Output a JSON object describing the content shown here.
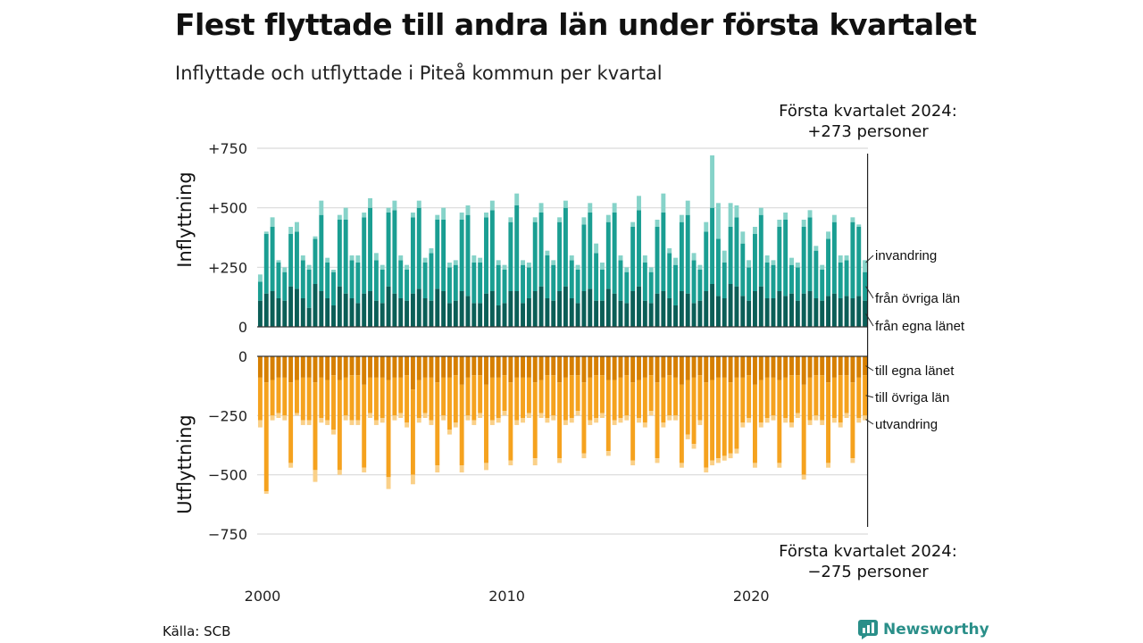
{
  "title": "Flest flyttade till andra län under första kvartalet",
  "subtitle": "Inflyttade och utflyttade i Piteå kommun per kvartal",
  "note_top": {
    "line1": "Första kvartalet 2024:",
    "line2": "+273 personer"
  },
  "note_bottom": {
    "line1": "Första kvartalet 2024:",
    "line2": "−275 personer"
  },
  "source": "Källa: SCB",
  "brand": {
    "name": "Newsworthy",
    "icon": "newsworthy-logo-icon"
  },
  "colors": {
    "in_own": "#0b5e57",
    "in_other": "#1a9e92",
    "in_immig": "#86d3c9",
    "out_own": "#d67f00",
    "out_other": "#f5a21e",
    "out_emig": "#fad088",
    "grid": "#d9d9d9",
    "axis": "#333333"
  },
  "chart_data": {
    "type": "bar",
    "stacked": true,
    "x_label": "",
    "x_ticks": [
      "2000",
      "2010",
      "2020"
    ],
    "x_range": [
      "2000 Q1",
      "2024 Q1"
    ],
    "panels": [
      {
        "name": "inflyttning",
        "ylabel": "Inflyttning",
        "ylim": [
          0,
          750
        ],
        "yticks": [
          0,
          250,
          500,
          750
        ],
        "ytick_labels": [
          "0",
          "+250",
          "+500",
          "+750"
        ],
        "series_labels": [
          "från egna länet",
          "från övriga län",
          "invandring"
        ]
      },
      {
        "name": "utflyttning",
        "ylabel": "Utflyttning",
        "ylim": [
          -750,
          0
        ],
        "yticks": [
          0,
          -250,
          -500,
          -750
        ],
        "ytick_labels": [
          "0",
          "−250",
          "−500",
          "−750"
        ],
        "series_labels": [
          "till egna länet",
          "till övriga län",
          "utvandring"
        ]
      }
    ],
    "in_total": [
      220,
      400,
      460,
      280,
      250,
      420,
      440,
      300,
      260,
      380,
      530,
      290,
      240,
      470,
      500,
      300,
      300,
      480,
      540,
      310,
      260,
      500,
      530,
      300,
      260,
      480,
      530,
      290,
      330,
      470,
      500,
      270,
      280,
      480,
      510,
      300,
      290,
      480,
      530,
      280,
      260,
      460,
      560,
      280,
      270,
      460,
      520,
      320,
      280,
      460,
      530,
      300,
      260,
      460,
      520,
      350,
      270,
      470,
      520,
      300,
      250,
      440,
      550,
      300,
      250,
      450,
      560,
      330,
      290,
      470,
      530,
      310,
      260,
      440,
      720,
      520,
      320,
      520,
      510,
      400,
      280,
      420,
      500,
      300,
      280,
      450,
      480,
      290,
      270,
      450,
      490,
      340,
      260,
      400,
      470,
      300,
      300,
      460,
      430,
      280
    ],
    "in_own": [
      110,
      140,
      150,
      120,
      110,
      170,
      160,
      120,
      80,
      180,
      150,
      120,
      90,
      170,
      140,
      120,
      100,
      140,
      150,
      110,
      100,
      170,
      140,
      120,
      110,
      140,
      160,
      120,
      110,
      160,
      150,
      100,
      110,
      150,
      130,
      100,
      100,
      140,
      150,
      90,
      100,
      150,
      150,
      100,
      120,
      150,
      170,
      120,
      110,
      150,
      170,
      120,
      100,
      150,
      160,
      110,
      110,
      160,
      140,
      110,
      100,
      150,
      170,
      110,
      100,
      140,
      150,
      120,
      90,
      150,
      140,
      100,
      110,
      150,
      180,
      130,
      120,
      180,
      170,
      130,
      110,
      150,
      170,
      120,
      120,
      150,
      130,
      140,
      110,
      140,
      150,
      120,
      110,
      130,
      140,
      120,
      130,
      120,
      130,
      110
    ],
    "in_other": [
      80,
      250,
      270,
      150,
      120,
      220,
      240,
      160,
      160,
      190,
      320,
      150,
      140,
      280,
      310,
      160,
      170,
      320,
      350,
      170,
      140,
      310,
      350,
      160,
      130,
      320,
      340,
      150,
      200,
      290,
      300,
      150,
      150,
      300,
      340,
      170,
      170,
      320,
      340,
      170,
      140,
      290,
      360,
      160,
      130,
      290,
      310,
      180,
      150,
      290,
      330,
      160,
      140,
      280,
      320,
      200,
      130,
      280,
      340,
      170,
      130,
      270,
      320,
      160,
      130,
      280,
      330,
      190,
      170,
      290,
      330,
      180,
      130,
      250,
      320,
      240,
      150,
      240,
      290,
      220,
      140,
      240,
      300,
      150,
      140,
      270,
      320,
      120,
      140,
      280,
      310,
      200,
      130,
      240,
      300,
      150,
      150,
      320,
      290,
      120
    ],
    "out_total": [
      -300,
      -580,
      -270,
      -260,
      -270,
      -470,
      -250,
      -290,
      -290,
      -530,
      -280,
      -290,
      -330,
      -500,
      -270,
      -290,
      -290,
      -490,
      -260,
      -290,
      -280,
      -560,
      -270,
      -260,
      -300,
      -540,
      -280,
      -260,
      -290,
      -490,
      -270,
      -330,
      -300,
      -490,
      -270,
      -290,
      -260,
      -480,
      -290,
      -280,
      -250,
      -460,
      -290,
      -280,
      -260,
      -460,
      -260,
      -280,
      -270,
      -450,
      -290,
      -280,
      -250,
      -430,
      -290,
      -280,
      -260,
      -420,
      -290,
      -280,
      -270,
      -460,
      -280,
      -300,
      -250,
      -450,
      -300,
      -270,
      -270,
      -470,
      -350,
      -390,
      -290,
      -490,
      -460,
      -450,
      -440,
      -430,
      -410,
      -300,
      -280,
      -470,
      -300,
      -280,
      -270,
      -470,
      -280,
      -300,
      -260,
      -520,
      -290,
      -270,
      -290,
      -470,
      -280,
      -300,
      -260,
      -450,
      -280,
      -270
    ],
    "out_own": [
      -90,
      -110,
      -100,
      -90,
      -90,
      -110,
      -100,
      -90,
      -90,
      -110,
      -90,
      -100,
      -80,
      -100,
      -90,
      -80,
      -80,
      -120,
      -90,
      -90,
      -90,
      -100,
      -90,
      -90,
      -80,
      -140,
      -100,
      -90,
      -90,
      -110,
      -90,
      -90,
      -80,
      -120,
      -90,
      -80,
      -80,
      -120,
      -90,
      -90,
      -80,
      -110,
      -90,
      -90,
      -90,
      -110,
      -100,
      -80,
      -80,
      -110,
      -90,
      -80,
      -80,
      -110,
      -90,
      -80,
      -80,
      -100,
      -100,
      -90,
      -80,
      -110,
      -100,
      -90,
      -80,
      -110,
      -90,
      -80,
      -90,
      -120,
      -100,
      -90,
      -80,
      -110,
      -100,
      -90,
      -90,
      -110,
      -90,
      -90,
      -80,
      -120,
      -100,
      -90,
      -90,
      -100,
      -90,
      -80,
      -80,
      -120,
      -90,
      -80,
      -80,
      -110,
      -90,
      -80,
      -80,
      -110,
      -90,
      -80
    ],
    "out_other": [
      -180,
      -460,
      -150,
      -150,
      -160,
      -340,
      -140,
      -180,
      -180,
      -370,
      -170,
      -170,
      -230,
      -380,
      -160,
      -190,
      -190,
      -350,
      -150,
      -180,
      -170,
      -410,
      -160,
      -150,
      -200,
      -360,
      -160,
      -150,
      -180,
      -350,
      -160,
      -220,
      -200,
      -340,
      -160,
      -190,
      -160,
      -330,
      -180,
      -170,
      -150,
      -330,
      -180,
      -170,
      -150,
      -320,
      -140,
      -180,
      -170,
      -320,
      -180,
      -180,
      -150,
      -300,
      -180,
      -180,
      -160,
      -300,
      -170,
      -170,
      -170,
      -330,
      -160,
      -190,
      -150,
      -320,
      -190,
      -170,
      -160,
      -330,
      -230,
      -280,
      -190,
      -360,
      -340,
      -340,
      -330,
      -300,
      -300,
      -190,
      -180,
      -330,
      -180,
      -170,
      -160,
      -350,
      -170,
      -200,
      -160,
      -380,
      -180,
      -170,
      -190,
      -340,
      -170,
      -200,
      -160,
      -320,
      -170,
      -170
    ]
  }
}
